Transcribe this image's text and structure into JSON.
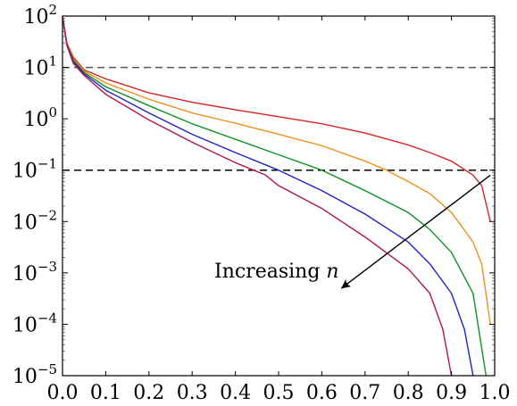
{
  "chart_data": {
    "type": "line",
    "title": "",
    "xlabel": "",
    "ylabel": "",
    "xlim": [
      0,
      1
    ],
    "ylim_log10": [
      -5,
      2
    ],
    "y_scale": "log",
    "grid": false,
    "x_ticks": [
      "0.0",
      "0.1",
      "0.2",
      "0.3",
      "0.4",
      "0.5",
      "0.6",
      "0.7",
      "0.8",
      "0.9",
      "1.0"
    ],
    "y_ticks": [
      {
        "base": "10",
        "exp": "−5"
      },
      {
        "base": "10",
        "exp": "−4"
      },
      {
        "base": "10",
        "exp": "−3"
      },
      {
        "base": "10",
        "exp": "−2"
      },
      {
        "base": "10",
        "exp": "−1"
      },
      {
        "base": "10",
        "exp": "0"
      },
      {
        "base": "10",
        "exp": "1"
      },
      {
        "base": "10",
        "exp": "2"
      }
    ],
    "reference_lines": [
      {
        "y": 10,
        "style": "dashed",
        "color": "#555555"
      },
      {
        "y": 0.1,
        "style": "dashed",
        "color": "#000000"
      }
    ],
    "series": [
      {
        "color": "#d62728",
        "points": [
          [
            0.0,
            100
          ],
          [
            0.01,
            30
          ],
          [
            0.025,
            16
          ],
          [
            0.05,
            9
          ],
          [
            0.1,
            6
          ],
          [
            0.2,
            3.2
          ],
          [
            0.3,
            2.1
          ],
          [
            0.4,
            1.5
          ],
          [
            0.5,
            1.1
          ],
          [
            0.6,
            0.8
          ],
          [
            0.7,
            0.53
          ],
          [
            0.8,
            0.31
          ],
          [
            0.85,
            0.22
          ],
          [
            0.9,
            0.15
          ],
          [
            0.95,
            0.08
          ],
          [
            0.97,
            0.05
          ],
          [
            0.99,
            0.01
          ]
        ]
      },
      {
        "color": "#f0901e",
        "points": [
          [
            0.0,
            100
          ],
          [
            0.01,
            30
          ],
          [
            0.025,
            15
          ],
          [
            0.05,
            8.5
          ],
          [
            0.1,
            5
          ],
          [
            0.2,
            2.4
          ],
          [
            0.3,
            1.3
          ],
          [
            0.4,
            0.82
          ],
          [
            0.5,
            0.5
          ],
          [
            0.6,
            0.3
          ],
          [
            0.7,
            0.15
          ],
          [
            0.75,
            0.1
          ],
          [
            0.8,
            0.06
          ],
          [
            0.85,
            0.035
          ],
          [
            0.9,
            0.015
          ],
          [
            0.95,
            0.004
          ],
          [
            0.97,
            0.0015
          ],
          [
            0.99,
            0.0001
          ]
        ]
      },
      {
        "color": "#0e9420",
        "points": [
          [
            0.0,
            100
          ],
          [
            0.01,
            28
          ],
          [
            0.025,
            14
          ],
          [
            0.05,
            8
          ],
          [
            0.1,
            4.2
          ],
          [
            0.2,
            1.8
          ],
          [
            0.3,
            0.8
          ],
          [
            0.4,
            0.4
          ],
          [
            0.5,
            0.2
          ],
          [
            0.6,
            0.1
          ],
          [
            0.7,
            0.04
          ],
          [
            0.8,
            0.015
          ],
          [
            0.85,
            0.007
          ],
          [
            0.9,
            0.0025
          ],
          [
            0.95,
            0.0004
          ],
          [
            0.98,
            1e-05
          ]
        ]
      },
      {
        "color": "#1f24c8",
        "points": [
          [
            0.0,
            100
          ],
          [
            0.01,
            28
          ],
          [
            0.025,
            13
          ],
          [
            0.05,
            7.5
          ],
          [
            0.1,
            3.6
          ],
          [
            0.2,
            1.3
          ],
          [
            0.3,
            0.5
          ],
          [
            0.4,
            0.22
          ],
          [
            0.5,
            0.1
          ],
          [
            0.6,
            0.04
          ],
          [
            0.7,
            0.014
          ],
          [
            0.8,
            0.004
          ],
          [
            0.85,
            0.0015
          ],
          [
            0.9,
            0.0004
          ],
          [
            0.93,
            8e-05
          ],
          [
            0.95,
            1e-05
          ]
        ]
      },
      {
        "color": "#b5154a",
        "points": [
          [
            0.0,
            100
          ],
          [
            0.01,
            27
          ],
          [
            0.025,
            12
          ],
          [
            0.05,
            7
          ],
          [
            0.1,
            3.0
          ],
          [
            0.2,
            0.95
          ],
          [
            0.3,
            0.35
          ],
          [
            0.4,
            0.14
          ],
          [
            0.47,
            0.08
          ],
          [
            0.5,
            0.05
          ],
          [
            0.6,
            0.018
          ],
          [
            0.7,
            0.005
          ],
          [
            0.8,
            0.0012
          ],
          [
            0.85,
            0.0004
          ],
          [
            0.88,
            8e-05
          ],
          [
            0.9,
            1e-05
          ]
        ]
      }
    ],
    "annotation": {
      "text": "Increasing ",
      "variable": "n",
      "arrow_from": [
        0.99,
        0.08
      ],
      "arrow_to": [
        0.645,
        0.0005
      ]
    }
  }
}
